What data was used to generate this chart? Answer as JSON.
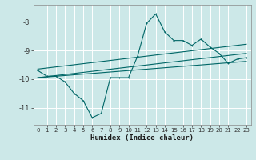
{
  "xlabel": "Humidex (Indice chaleur)",
  "bg_color": "#cce8e8",
  "grid_color": "#ffffff",
  "line_color": "#006666",
  "xlim": [
    -0.5,
    23.5
  ],
  "ylim": [
    -11.6,
    -7.4
  ],
  "yticks": [
    -11,
    -10,
    -9,
    -8
  ],
  "xticks": [
    0,
    1,
    2,
    3,
    4,
    5,
    6,
    7,
    8,
    9,
    10,
    11,
    12,
    13,
    14,
    15,
    16,
    17,
    18,
    19,
    20,
    21,
    22,
    23
  ],
  "series1_x": [
    0,
    1,
    2,
    3,
    4,
    5,
    6,
    7,
    8,
    9,
    10,
    11,
    12,
    13,
    14,
    15,
    16,
    17,
    18,
    19,
    20,
    21,
    22,
    23
  ],
  "series1_y": [
    -9.7,
    -9.9,
    -9.9,
    -10.1,
    -10.5,
    -10.75,
    -11.35,
    -11.2,
    -9.95,
    -9.95,
    -9.95,
    -9.2,
    -8.05,
    -7.72,
    -8.35,
    -8.65,
    -8.65,
    -8.82,
    -8.6,
    -8.88,
    -9.1,
    -9.45,
    -9.3,
    -9.25
  ],
  "series2_x": [
    0,
    23
  ],
  "series2_y": [
    -9.65,
    -8.78
  ],
  "series3_x": [
    0,
    23
  ],
  "series3_y": [
    -9.95,
    -9.1
  ],
  "series4_x": [
    0,
    23
  ],
  "series4_y": [
    -9.95,
    -9.38
  ]
}
